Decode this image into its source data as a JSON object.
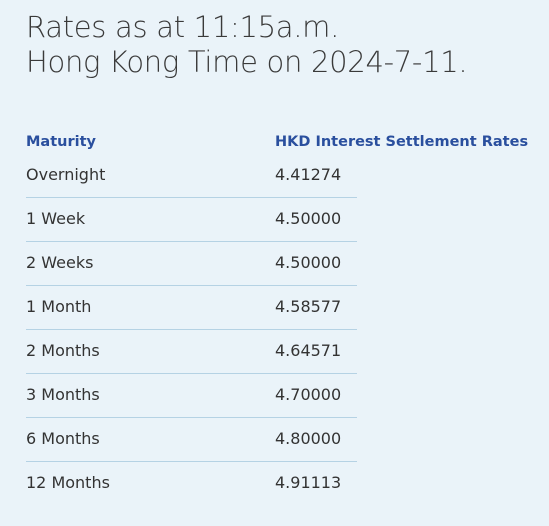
{
  "title": [
    "Rates as at 11:15a.m.",
    "Hong Kong Time on 2024-7-11."
  ],
  "table": {
    "columns": [
      "Maturity",
      "HKD Interest Settlement Rates"
    ],
    "rows": [
      [
        "Overnight",
        "4.41274"
      ],
      [
        "1 Week",
        "4.50000"
      ],
      [
        "2 Weeks",
        "4.50000"
      ],
      [
        "1 Month",
        "4.58577"
      ],
      [
        "2 Months",
        "4.64571"
      ],
      [
        "3 Months",
        "4.70000"
      ],
      [
        "6 Months",
        "4.80000"
      ],
      [
        "12 Months",
        "4.91113"
      ]
    ]
  }
}
